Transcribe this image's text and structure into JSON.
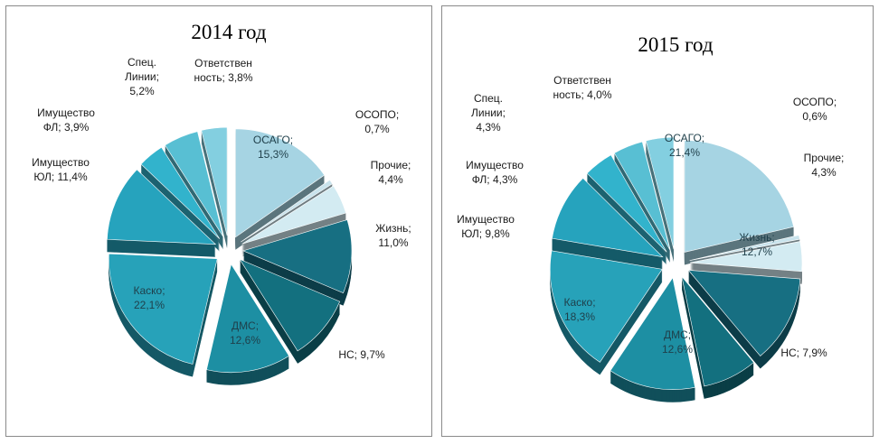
{
  "chart_data": [
    {
      "type": "pie",
      "title": "2014 год",
      "slices": [
        {
          "label_lines": [
            "ОСАГО;",
            "15,3%"
          ],
          "value": 15.3,
          "color": "#a6d4e3",
          "label_inside": true
        },
        {
          "label_lines": [
            "ОСОПО;",
            "0,7%"
          ],
          "value": 0.7,
          "color": "#c9e3ec",
          "label_inside": false
        },
        {
          "label_lines": [
            "Прочие;",
            "4,4%"
          ],
          "value": 4.4,
          "color": "#d3ebf2",
          "label_inside": false
        },
        {
          "label_lines": [
            "Жизнь;",
            "11,0%"
          ],
          "value": 11.0,
          "color": "#176f82",
          "label_inside": false
        },
        {
          "label_lines": [
            "НС; 9,7%"
          ],
          "value": 9.7,
          "color": "#13707f",
          "label_inside": false
        },
        {
          "label_lines": [
            "ДМС;",
            "12,6%"
          ],
          "value": 12.6,
          "color": "#1d8fa3",
          "label_inside": true
        },
        {
          "label_lines": [
            "Каско;",
            "22,1%"
          ],
          "value": 22.1,
          "color": "#27a2b9",
          "label_inside": true
        },
        {
          "label_lines": [
            "Имущество",
            "ЮЛ; 11,4%"
          ],
          "value": 11.4,
          "color": "#26a3bd",
          "label_inside": false
        },
        {
          "label_lines": [
            "Имущество",
            "ФЛ; 3,9%"
          ],
          "value": 3.9,
          "color": "#32b3cc",
          "label_inside": false
        },
        {
          "label_lines": [
            "Спец.",
            "Линии;",
            "5,2%"
          ],
          "value": 5.2,
          "color": "#58bfd3",
          "label_inside": false
        },
        {
          "label_lines": [
            "Ответствен",
            "ность; 3,8%"
          ],
          "value": 3.8,
          "color": "#83cfe0",
          "label_inside": false
        }
      ]
    },
    {
      "type": "pie",
      "title": "2015 год",
      "slices": [
        {
          "label_lines": [
            "ОСАГО;",
            "21,4%"
          ],
          "value": 21.4,
          "color": "#a6d4e3",
          "label_inside": true
        },
        {
          "label_lines": [
            "ОСОПО;",
            "0,6%"
          ],
          "value": 0.6,
          "color": "#c9e3ec",
          "label_inside": false
        },
        {
          "label_lines": [
            "Прочие;",
            "4,3%"
          ],
          "value": 4.3,
          "color": "#d3ebf2",
          "label_inside": false
        },
        {
          "label_lines": [
            "Жизнь;",
            "12,7%"
          ],
          "value": 12.7,
          "color": "#176f82",
          "label_inside": true
        },
        {
          "label_lines": [
            "НС; 7,9%"
          ],
          "value": 7.9,
          "color": "#13707f",
          "label_inside": false
        },
        {
          "label_lines": [
            "ДМС;",
            "12,6%"
          ],
          "value": 12.6,
          "color": "#1d8fa3",
          "label_inside": true
        },
        {
          "label_lines": [
            "Каско;",
            "18,3%"
          ],
          "value": 18.3,
          "color": "#27a2b9",
          "label_inside": true
        },
        {
          "label_lines": [
            "Имущество",
            "ЮЛ; 9,8%"
          ],
          "value": 9.8,
          "color": "#26a3bd",
          "label_inside": false
        },
        {
          "label_lines": [
            "Имущество",
            "ФЛ; 4,3%"
          ],
          "value": 4.3,
          "color": "#32b3cc",
          "label_inside": false
        },
        {
          "label_lines": [
            "Спец.",
            "Линии;",
            "4,3%"
          ],
          "value": 4.3,
          "color": "#58bfd3",
          "label_inside": false
        },
        {
          "label_lines": [
            "Ответствен",
            "ность; 4,0%"
          ],
          "value": 4.0,
          "color": "#83cfe0",
          "label_inside": false
        }
      ]
    }
  ]
}
